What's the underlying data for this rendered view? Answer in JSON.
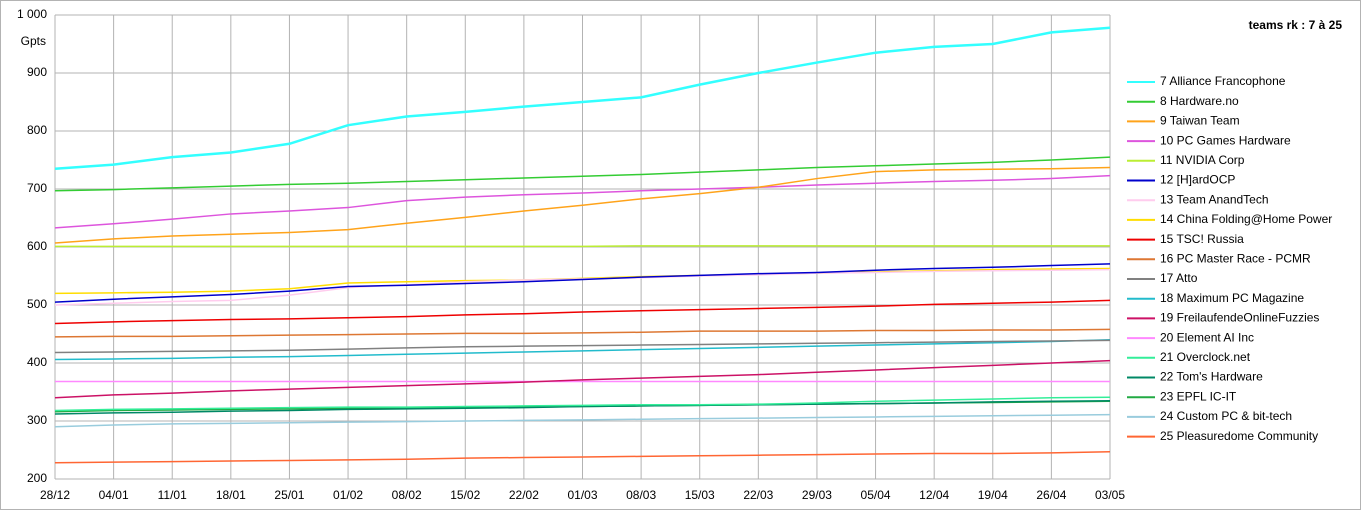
{
  "chart_data": {
    "type": "line",
    "title": "teams rk : 7 à 25",
    "y_label": "Gpts",
    "categories": [
      "28/12",
      "04/01",
      "11/01",
      "18/01",
      "25/01",
      "01/02",
      "08/02",
      "15/02",
      "22/02",
      "01/03",
      "08/03",
      "15/03",
      "22/03",
      "29/03",
      "05/04",
      "12/04",
      "19/04",
      "26/04",
      "03/05"
    ],
    "ylim": [
      200,
      1000
    ],
    "yticks": [
      200,
      300,
      400,
      500,
      600,
      700,
      800,
      900,
      {
        "value": 1000,
        "label": "1 000"
      }
    ],
    "grid": true,
    "legend": "right",
    "series": [
      {
        "name": "7 Alliance Francophone",
        "color": "#33ffff",
        "values": [
          735,
          742,
          755,
          763,
          778,
          810,
          825,
          833,
          842,
          850,
          858,
          880,
          900,
          918,
          935,
          945,
          950,
          970,
          978
        ]
      },
      {
        "name": "8 Hardware.no",
        "color": "#33cc33",
        "values": [
          697,
          699,
          702,
          705,
          708,
          710,
          713,
          716,
          719,
          722,
          725,
          729,
          733,
          737,
          740,
          743,
          746,
          750,
          755
        ]
      },
      {
        "name": "9 Taiwan Team",
        "color": "#ffa31a",
        "values": [
          607,
          614,
          619,
          622,
          625,
          630,
          641,
          651,
          662,
          672,
          683,
          692,
          703,
          718,
          730,
          733,
          734,
          735,
          737
        ]
      },
      {
        "name": "10 PC Games Hardware",
        "color": "#dd55dd",
        "values": [
          633,
          640,
          648,
          657,
          662,
          668,
          680,
          686,
          690,
          693,
          697,
          700,
          703,
          707,
          710,
          713,
          715,
          718,
          723
        ]
      },
      {
        "name": "11 NVIDIA Corp",
        "color": "#bbee33",
        "values": [
          601,
          601,
          601,
          601,
          601,
          601,
          601,
          601,
          601,
          601,
          602,
          602,
          602,
          602,
          602,
          602,
          602,
          602,
          602
        ]
      },
      {
        "name": "12 [H]ardOCP",
        "color": "#0000cc",
        "values": [
          505,
          510,
          514,
          518,
          524,
          532,
          534,
          537,
          540,
          544,
          548,
          551,
          554,
          556,
          560,
          563,
          565,
          568,
          571
        ]
      },
      {
        "name": "13 Team AnandTech",
        "color": "#ffccee",
        "values": [
          500,
          503,
          506,
          508,
          517,
          530,
          535,
          540,
          543,
          545,
          547,
          550,
          552,
          555,
          556,
          558,
          559,
          560,
          561
        ]
      },
      {
        "name": "14 China Folding@Home Power",
        "color": "#ffdd00",
        "values": [
          520,
          521,
          522,
          524,
          528,
          538,
          540,
          542,
          543,
          546,
          549,
          551,
          553,
          555,
          557,
          559,
          561,
          562,
          563
        ]
      },
      {
        "name": "15 TSC! Russia",
        "color": "#ee0000",
        "values": [
          468,
          471,
          473,
          475,
          476,
          478,
          480,
          483,
          485,
          488,
          490,
          492,
          494,
          496,
          498,
          501,
          503,
          505,
          508
        ]
      },
      {
        "name": "16 PC Master Race - PCMR",
        "color": "#dd7733",
        "values": [
          445,
          446,
          446,
          447,
          448,
          449,
          450,
          451,
          451,
          452,
          453,
          455,
          455,
          455,
          456,
          456,
          457,
          457,
          458
        ]
      },
      {
        "name": "17 Atto",
        "color": "#808080",
        "values": [
          418,
          419,
          420,
          421,
          422,
          424,
          426,
          428,
          429,
          430,
          431,
          432,
          433,
          434,
          435,
          436,
          437,
          438,
          439
        ]
      },
      {
        "name": "18 Maximum PC Magazine",
        "color": "#22bbcc",
        "values": [
          406,
          407,
          408,
          410,
          411,
          413,
          415,
          417,
          419,
          421,
          423,
          425,
          427,
          429,
          431,
          433,
          435,
          437,
          440
        ]
      },
      {
        "name": "19 FreilaufendeOnlineFuzzies",
        "color": "#cc1166",
        "values": [
          340,
          345,
          348,
          352,
          355,
          358,
          361,
          364,
          367,
          371,
          374,
          377,
          380,
          384,
          388,
          392,
          396,
          400,
          404
        ]
      },
      {
        "name": "20 Element AI Inc",
        "color": "#ff88ff",
        "values": [
          368,
          368,
          368,
          368,
          368,
          368,
          368,
          368,
          368,
          368,
          368,
          368,
          368,
          368,
          368,
          368,
          368,
          368,
          368
        ]
      },
      {
        "name": "21 Overclock.net",
        "color": "#33ee99",
        "values": [
          318,
          320,
          321,
          322,
          323,
          324,
          324,
          325,
          326,
          327,
          328,
          328,
          329,
          331,
          334,
          336,
          338,
          340,
          341
        ]
      },
      {
        "name": "22 Tom's Hardware",
        "color": "#008866",
        "values": [
          312,
          314,
          315,
          317,
          318,
          320,
          321,
          322,
          323,
          325,
          326,
          327,
          328,
          329,
          330,
          331,
          333,
          334,
          335
        ]
      },
      {
        "name": "23 EPFL IC-IT",
        "color": "#22aa44",
        "values": [
          316,
          318,
          319,
          320,
          321,
          322,
          322,
          323,
          324,
          325,
          326,
          327,
          328,
          329,
          330,
          331,
          332,
          333,
          334
        ]
      },
      {
        "name": "24 Custom PC & bit-tech",
        "color": "#99ccdd",
        "values": [
          290,
          293,
          295,
          296,
          297,
          298,
          299,
          300,
          301,
          302,
          303,
          304,
          305,
          306,
          307,
          308,
          309,
          310,
          311
        ]
      },
      {
        "name": "25 Pleasuredome Community",
        "color": "#ff6633",
        "values": [
          228,
          229,
          230,
          231,
          232,
          233,
          234,
          236,
          237,
          238,
          239,
          240,
          241,
          242,
          243,
          244,
          244,
          245,
          247
        ]
      }
    ]
  }
}
